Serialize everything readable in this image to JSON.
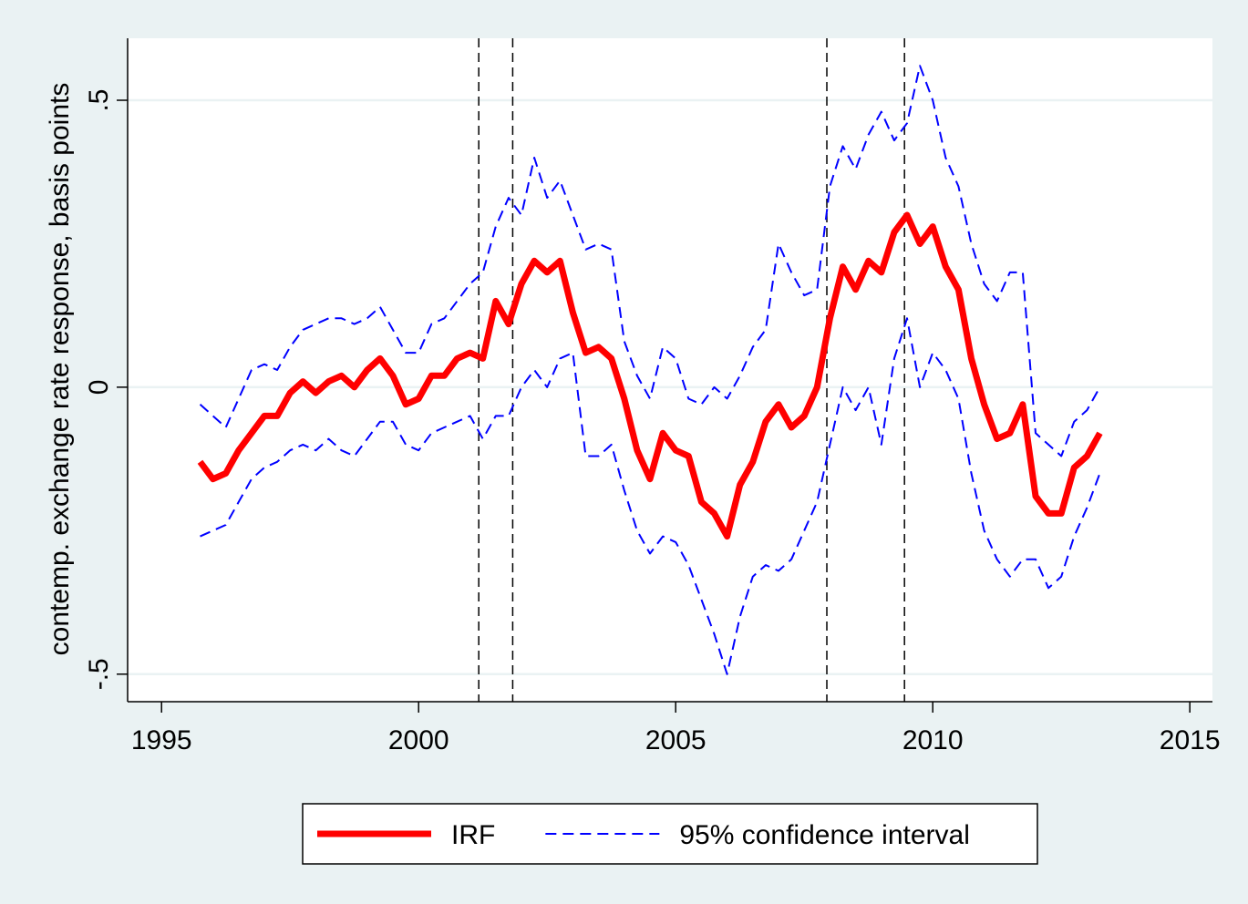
{
  "chart_data": {
    "type": "line",
    "ylabel": "contemp. exchange rate response, basis points",
    "x": [
      1995.75,
      1996,
      1996.25,
      1996.5,
      1996.75,
      1997,
      1997.25,
      1997.5,
      1997.75,
      1998,
      1998.25,
      1998.5,
      1998.75,
      1999,
      1999.25,
      1999.5,
      1999.75,
      2000,
      2000.25,
      2000.5,
      2000.75,
      2001,
      2001.25,
      2001.5,
      2001.75,
      2002,
      2002.25,
      2002.5,
      2002.75,
      2003,
      2003.25,
      2003.5,
      2003.75,
      2004,
      2004.25,
      2004.5,
      2004.75,
      2005,
      2005.25,
      2005.5,
      2005.75,
      2006,
      2006.25,
      2006.5,
      2006.75,
      2007,
      2007.25,
      2007.5,
      2007.75,
      2008,
      2008.25,
      2008.5,
      2008.75,
      2009,
      2009.25,
      2009.5,
      2009.75,
      2010,
      2010.25,
      2010.5,
      2010.75,
      2011,
      2011.25,
      2011.5,
      2011.75,
      2012,
      2012.25,
      2012.5,
      2012.75,
      2013,
      2013.25
    ],
    "series": [
      {
        "name": "IRF",
        "color": "#ff0000",
        "values": [
          -0.13,
          -0.16,
          -0.15,
          -0.11,
          -0.08,
          -0.05,
          -0.05,
          -0.01,
          0.01,
          -0.01,
          0.01,
          0.02,
          0.0,
          0.03,
          0.05,
          0.02,
          -0.03,
          -0.02,
          0.02,
          0.02,
          0.05,
          0.06,
          0.05,
          0.15,
          0.11,
          0.18,
          0.22,
          0.2,
          0.22,
          0.13,
          0.06,
          0.07,
          0.05,
          -0.02,
          -0.11,
          -0.16,
          -0.08,
          -0.11,
          -0.12,
          -0.2,
          -0.22,
          -0.26,
          -0.17,
          -0.13,
          -0.06,
          -0.03,
          -0.07,
          -0.05,
          0.0,
          0.12,
          0.21,
          0.17,
          0.22,
          0.2,
          0.27,
          0.3,
          0.25,
          0.28,
          0.21,
          0.17,
          0.05,
          -0.03,
          -0.09,
          -0.08,
          -0.03,
          -0.19,
          -0.22,
          -0.22,
          -0.14,
          -0.12,
          -0.08
        ]
      },
      {
        "name": "95% confidence interval",
        "color": "#0000ff",
        "upper": [
          -0.03,
          -0.05,
          -0.07,
          -0.02,
          0.03,
          0.04,
          0.03,
          0.07,
          0.1,
          0.11,
          0.12,
          0.12,
          0.11,
          0.12,
          0.14,
          0.1,
          0.06,
          0.06,
          0.11,
          0.12,
          0.15,
          0.18,
          0.2,
          0.28,
          0.33,
          0.3,
          0.4,
          0.33,
          0.36,
          0.3,
          0.24,
          0.25,
          0.24,
          0.08,
          0.02,
          -0.02,
          0.07,
          0.05,
          -0.02,
          -0.03,
          0.0,
          -0.02,
          0.02,
          0.07,
          0.1,
          0.25,
          0.2,
          0.16,
          0.17,
          0.35,
          0.42,
          0.38,
          0.44,
          0.48,
          0.43,
          0.46,
          0.56,
          0.5,
          0.4,
          0.35,
          0.25,
          0.18,
          0.15,
          0.2,
          0.2,
          -0.08,
          -0.1,
          -0.12,
          -0.06,
          -0.04,
          0.0
        ],
        "lower": [
          -0.26,
          -0.25,
          -0.24,
          -0.2,
          -0.16,
          -0.14,
          -0.13,
          -0.11,
          -0.1,
          -0.11,
          -0.09,
          -0.11,
          -0.12,
          -0.09,
          -0.06,
          -0.06,
          -0.1,
          -0.11,
          -0.08,
          -0.07,
          -0.06,
          -0.05,
          -0.09,
          -0.05,
          -0.05,
          0.0,
          0.03,
          0.0,
          0.05,
          0.06,
          -0.12,
          -0.12,
          -0.1,
          -0.18,
          -0.25,
          -0.29,
          -0.26,
          -0.27,
          -0.31,
          -0.37,
          -0.43,
          -0.5,
          -0.4,
          -0.33,
          -0.31,
          -0.32,
          -0.3,
          -0.25,
          -0.2,
          -0.1,
          0.0,
          -0.04,
          0.0,
          -0.1,
          0.05,
          0.12,
          0.0,
          0.06,
          0.03,
          -0.02,
          -0.15,
          -0.25,
          -0.3,
          -0.33,
          -0.3,
          -0.3,
          -0.35,
          -0.33,
          -0.26,
          -0.21,
          -0.15
        ]
      }
    ],
    "vlines": [
      2001.17,
      2001.83,
      2007.94,
      2009.45
    ],
    "xlim": [
      1994.34,
      2015.44
    ],
    "xticks": [
      1995,
      2000,
      2005,
      2010,
      2015
    ],
    "ylim": [
      -0.548,
      0.608
    ],
    "yticks": [
      {
        "value": -0.5,
        "label": "-.5"
      },
      0,
      {
        "value": 0.5,
        "label": ".5"
      }
    ],
    "grid": true,
    "legend": "bottom"
  }
}
